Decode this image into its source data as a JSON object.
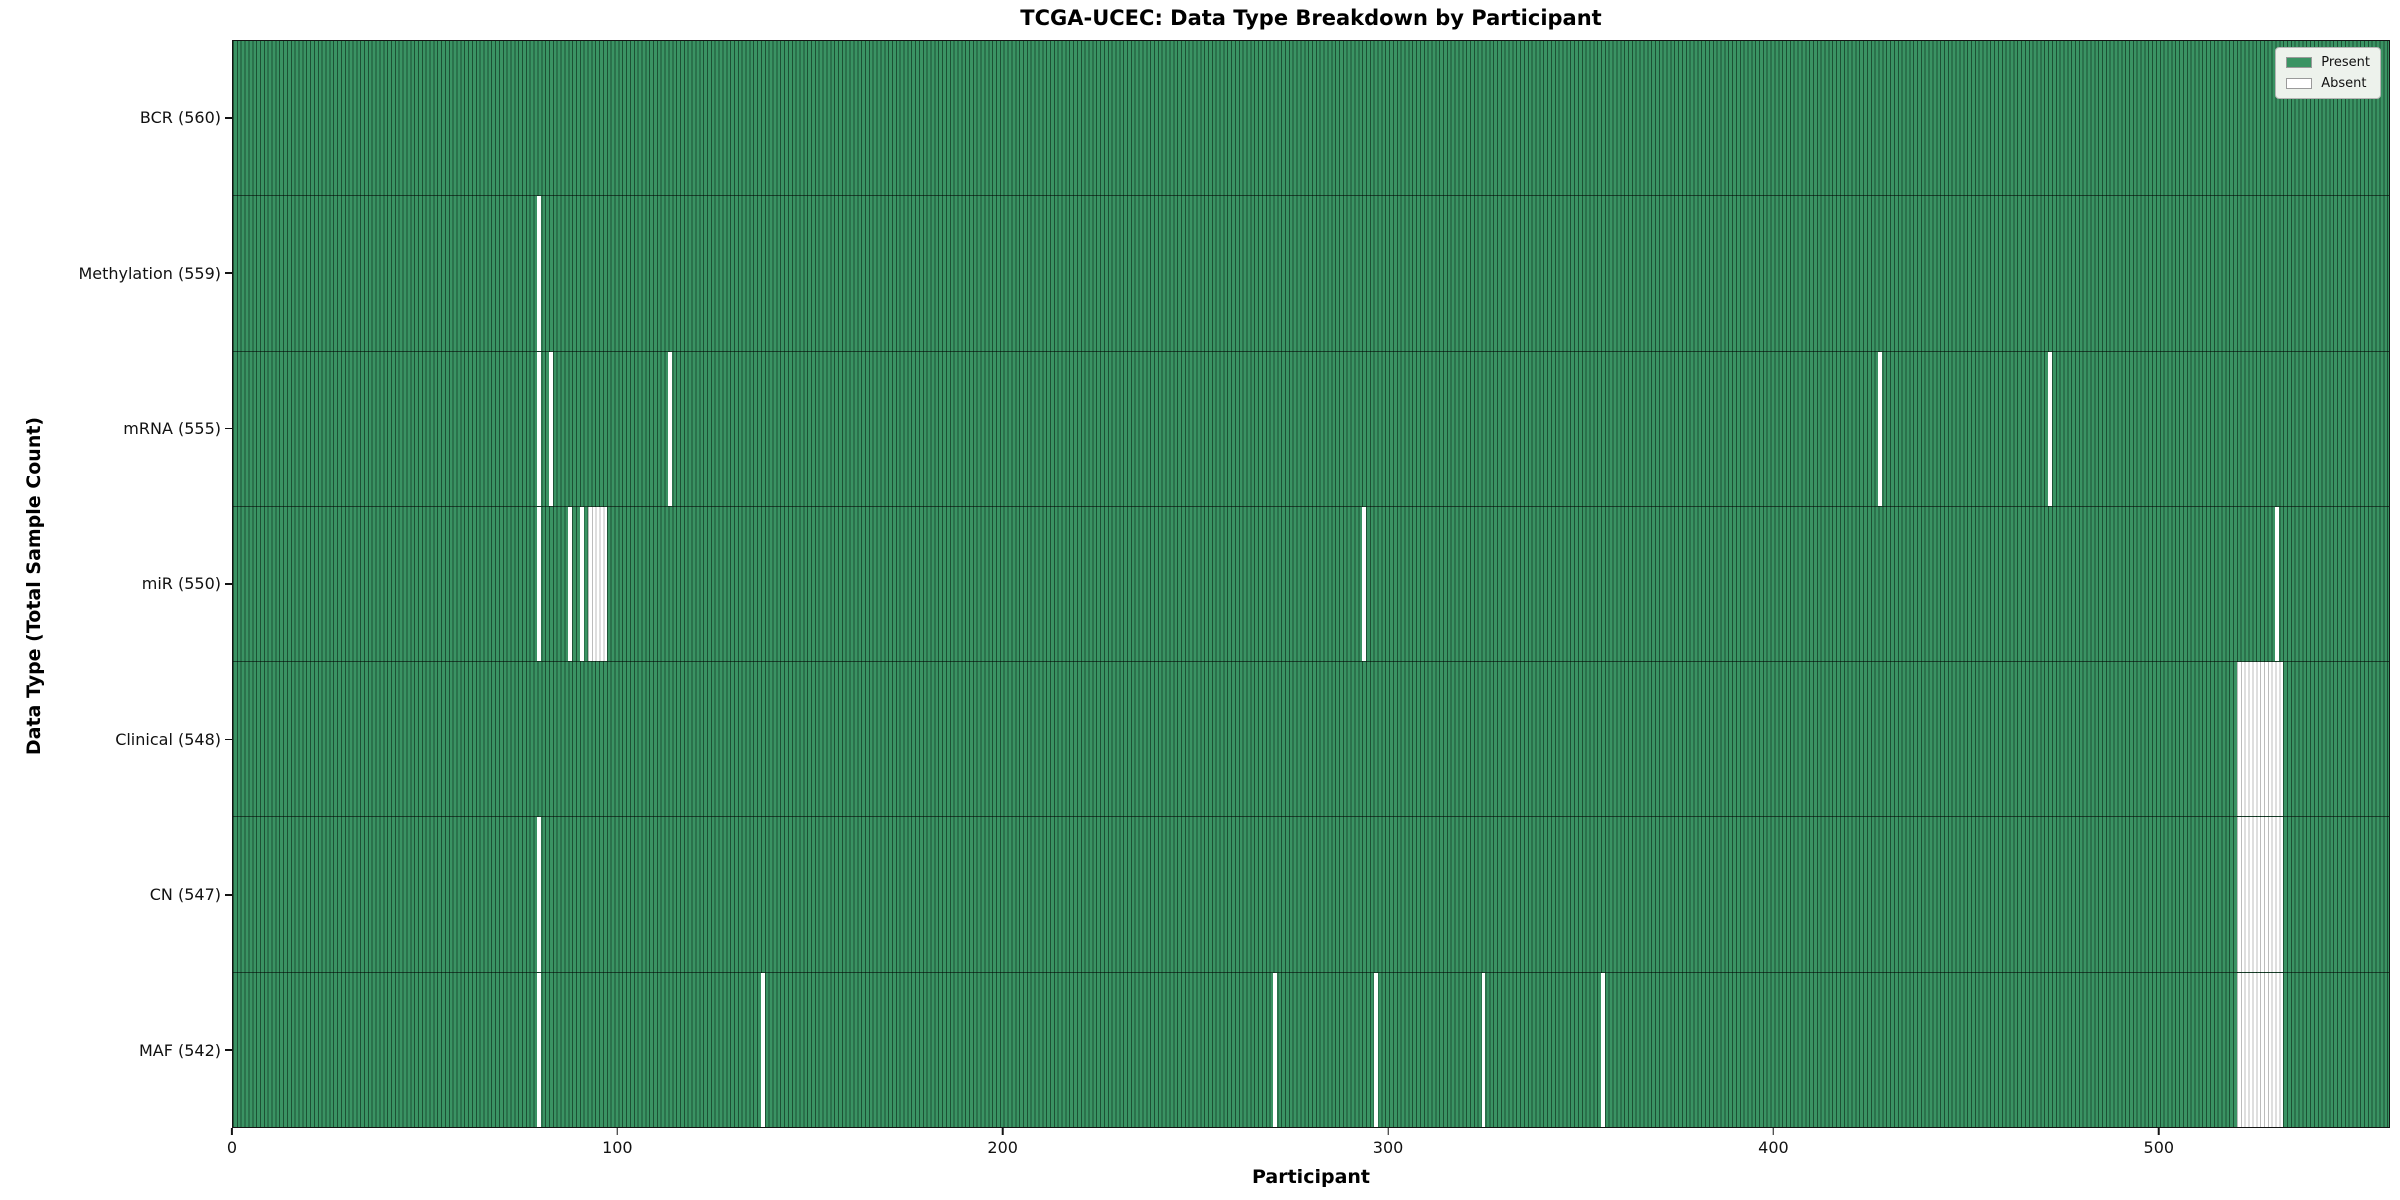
{
  "chart_data": {
    "type": "heatmap",
    "title": "TCGA-UCEC: Data Type Breakdown by Participant",
    "xlabel": "Participant",
    "ylabel": "Data Type (Total Sample Count)",
    "n_participants": 560,
    "x_ticks": [
      0,
      100,
      200,
      300,
      400,
      500
    ],
    "colors": {
      "present": "#3a9363",
      "present_edge": "#1c5134",
      "absent": "#ffffff"
    },
    "legend": [
      {
        "label": "Present",
        "color": "#3a9363"
      },
      {
        "label": "Absent",
        "color": "#ffffff"
      }
    ],
    "legend_position": "upper right",
    "rows": [
      {
        "label": "BCR (560)",
        "data_type": "BCR",
        "count": 560,
        "absent_runs": []
      },
      {
        "label": "Methylation (559)",
        "data_type": "Methylation",
        "count": 559,
        "absent_runs": [
          [
            79,
            1
          ]
        ]
      },
      {
        "label": "mRNA (555)",
        "data_type": "mRNA",
        "count": 555,
        "absent_runs": [
          [
            79,
            1
          ],
          [
            82,
            1
          ],
          [
            113,
            1
          ],
          [
            427,
            1
          ],
          [
            471,
            1
          ]
        ]
      },
      {
        "label": "miR (550)",
        "data_type": "miR",
        "count": 550,
        "absent_runs": [
          [
            79,
            1
          ],
          [
            87,
            1
          ],
          [
            90,
            1
          ],
          [
            92,
            5
          ],
          [
            293,
            1
          ],
          [
            530,
            1
          ]
        ]
      },
      {
        "label": "Clinical (548)",
        "data_type": "Clinical",
        "count": 548,
        "absent_runs": [
          [
            520,
            12
          ]
        ]
      },
      {
        "label": "CN (547)",
        "data_type": "CN",
        "count": 547,
        "absent_runs": [
          [
            79,
            1
          ],
          [
            520,
            12
          ]
        ]
      },
      {
        "label": "MAF (542)",
        "data_type": "MAF",
        "count": 542,
        "absent_runs": [
          [
            79,
            1
          ],
          [
            137,
            1
          ],
          [
            270,
            1
          ],
          [
            296,
            1
          ],
          [
            324,
            1
          ],
          [
            355,
            1
          ],
          [
            520,
            12
          ]
        ]
      }
    ]
  }
}
